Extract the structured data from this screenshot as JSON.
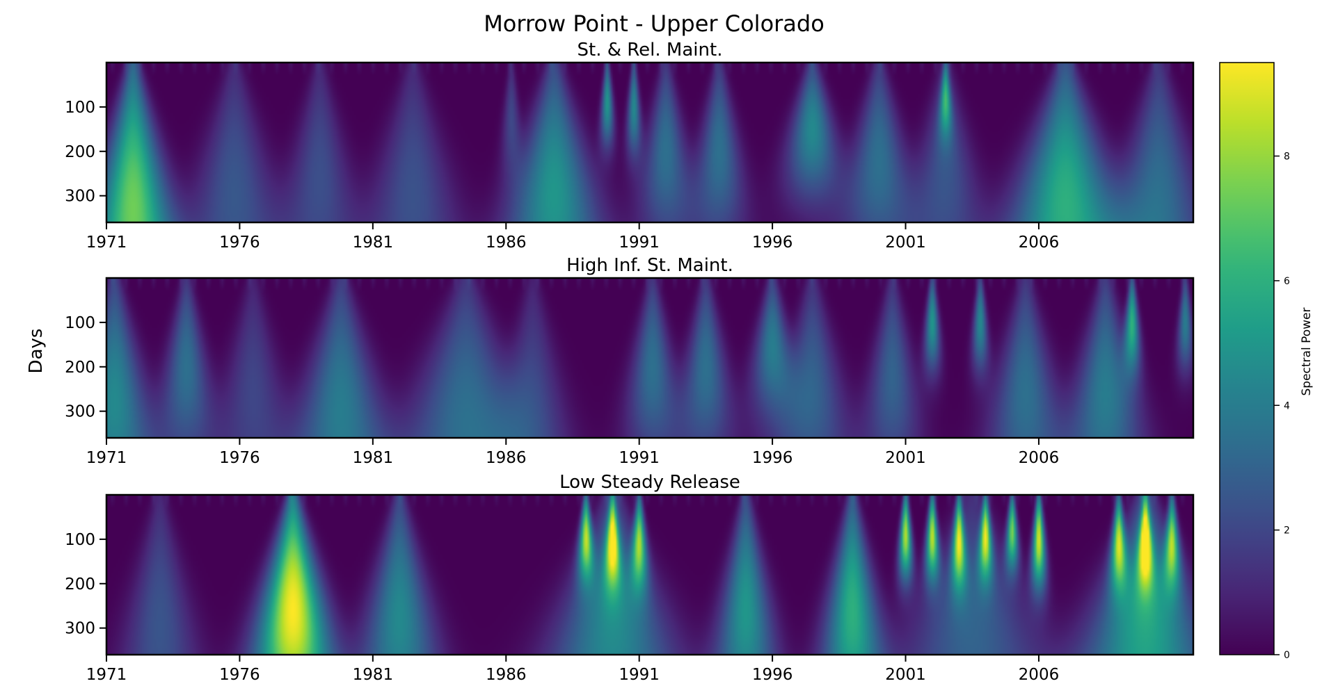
{
  "figure": {
    "title": "Morrow Point - Upper Colorado",
    "ylabel": "Days",
    "colorbar_label": "Spectral Power"
  },
  "colors": {
    "colormap": "viridis",
    "axis_frame": "#000000",
    "background": "#ffffff"
  },
  "chart_data": [
    {
      "type": "heatmap",
      "title": "St. & Rel. Maint.",
      "x_ticks": [
        "1971",
        "1976",
        "1981",
        "1986",
        "1991",
        "1996",
        "2001",
        "2006"
      ],
      "y_ticks": [
        "100",
        "200",
        "300"
      ],
      "xlim": [
        1971,
        2011.8
      ],
      "ylim": [
        360,
        0
      ],
      "vmax": 9.5,
      "features": [
        {
          "year": 1972.0,
          "period": 330,
          "power": 7.4,
          "width": 0.5
        },
        {
          "year": 1975.8,
          "period": 300,
          "power": 2.6,
          "width": 0.6
        },
        {
          "year": 1979.0,
          "period": 260,
          "power": 2.3,
          "width": 0.5
        },
        {
          "year": 1982.5,
          "period": 300,
          "power": 2.4,
          "width": 0.6
        },
        {
          "year": 1986.2,
          "period": 120,
          "power": 2.0,
          "width": 0.22
        },
        {
          "year": 1987.8,
          "period": 300,
          "power": 5.0,
          "width": 0.6
        },
        {
          "year": 1989.8,
          "period": 90,
          "power": 5.0,
          "width": 0.18
        },
        {
          "year": 1990.8,
          "period": 100,
          "power": 4.5,
          "width": 0.18
        },
        {
          "year": 1992.0,
          "period": 200,
          "power": 3.5,
          "width": 0.4
        },
        {
          "year": 1994.0,
          "period": 200,
          "power": 3.5,
          "width": 0.4
        },
        {
          "year": 1997.5,
          "period": 150,
          "power": 4.5,
          "width": 0.5
        },
        {
          "year": 2000.0,
          "period": 220,
          "power": 3.5,
          "width": 0.5
        },
        {
          "year": 2002.5,
          "period": 80,
          "power": 5.0,
          "width": 0.18
        },
        {
          "year": 2002.5,
          "period": 250,
          "power": 2.5,
          "width": 0.5
        },
        {
          "year": 2007.0,
          "period": 320,
          "power": 6.0,
          "width": 0.7
        },
        {
          "year": 2010.5,
          "period": 320,
          "power": 3.5,
          "width": 0.6
        }
      ]
    },
    {
      "type": "heatmap",
      "title": "High Inf. St. Maint.",
      "x_ticks": [
        "1971",
        "1976",
        "1981",
        "1986",
        "1991",
        "1996",
        "2001",
        "2006"
      ],
      "y_ticks": [
        "100",
        "200",
        "300"
      ],
      "xlim": [
        1971,
        2011.8
      ],
      "ylim": [
        360,
        0
      ],
      "vmax": 9.5,
      "features": [
        {
          "year": 1971.3,
          "period": 280,
          "power": 4.5,
          "width": 0.5
        },
        {
          "year": 1974.0,
          "period": 200,
          "power": 3.5,
          "width": 0.4
        },
        {
          "year": 1976.5,
          "period": 260,
          "power": 2.0,
          "width": 0.5
        },
        {
          "year": 1979.8,
          "period": 300,
          "power": 4.0,
          "width": 0.6
        },
        {
          "year": 1984.5,
          "period": 320,
          "power": 3.5,
          "width": 0.8
        },
        {
          "year": 1987.0,
          "period": 260,
          "power": 2.0,
          "width": 0.5
        },
        {
          "year": 1991.5,
          "period": 200,
          "power": 3.5,
          "width": 0.4
        },
        {
          "year": 1993.5,
          "period": 200,
          "power": 3.5,
          "width": 0.4
        },
        {
          "year": 1996.0,
          "period": 150,
          "power": 4.0,
          "width": 0.4
        },
        {
          "year": 1997.5,
          "period": 250,
          "power": 3.0,
          "width": 0.5
        },
        {
          "year": 2000.5,
          "period": 220,
          "power": 3.0,
          "width": 0.4
        },
        {
          "year": 2002.0,
          "period": 100,
          "power": 5.0,
          "width": 0.2
        },
        {
          "year": 2003.8,
          "period": 100,
          "power": 4.5,
          "width": 0.2
        },
        {
          "year": 2005.5,
          "period": 260,
          "power": 3.5,
          "width": 0.5
        },
        {
          "year": 2008.5,
          "period": 260,
          "power": 4.0,
          "width": 0.5
        },
        {
          "year": 2009.5,
          "period": 100,
          "power": 6.0,
          "width": 0.2
        },
        {
          "year": 2011.5,
          "period": 100,
          "power": 4.0,
          "width": 0.2
        }
      ]
    },
    {
      "type": "heatmap",
      "title": "Low Steady Release",
      "x_ticks": [
        "1971",
        "1976",
        "1981",
        "1986",
        "1991",
        "1996",
        "2001",
        "2006"
      ],
      "y_ticks": [
        "100",
        "200",
        "300"
      ],
      "xlim": [
        1971,
        2011.8
      ],
      "ylim": [
        360,
        0
      ],
      "vmax": 9.5,
      "features": [
        {
          "year": 1973.0,
          "period": 300,
          "power": 2.5,
          "width": 0.5
        },
        {
          "year": 1978.0,
          "period": 260,
          "power": 9.5,
          "width": 0.5
        },
        {
          "year": 1982.0,
          "period": 280,
          "power": 4.5,
          "width": 0.5
        },
        {
          "year": 1989.0,
          "period": 90,
          "power": 8.0,
          "width": 0.2
        },
        {
          "year": 1990.0,
          "period": 100,
          "power": 8.0,
          "width": 0.2
        },
        {
          "year": 1991.0,
          "period": 100,
          "power": 7.5,
          "width": 0.2
        },
        {
          "year": 1990.0,
          "period": 320,
          "power": 4.5,
          "width": 0.8
        },
        {
          "year": 1995.0,
          "period": 260,
          "power": 5.0,
          "width": 0.4
        },
        {
          "year": 1999.0,
          "period": 260,
          "power": 6.0,
          "width": 0.4
        },
        {
          "year": 2001.0,
          "period": 90,
          "power": 8.5,
          "width": 0.18
        },
        {
          "year": 2002.0,
          "period": 90,
          "power": 8.5,
          "width": 0.18
        },
        {
          "year": 2003.0,
          "period": 100,
          "power": 8.0,
          "width": 0.18
        },
        {
          "year": 2004.0,
          "period": 90,
          "power": 8.0,
          "width": 0.18
        },
        {
          "year": 2005.0,
          "period": 80,
          "power": 7.5,
          "width": 0.18
        },
        {
          "year": 2006.0,
          "period": 100,
          "power": 9.0,
          "width": 0.18
        },
        {
          "year": 2003.5,
          "period": 320,
          "power": 3.0,
          "width": 0.9
        },
        {
          "year": 2009.0,
          "period": 100,
          "power": 8.0,
          "width": 0.2
        },
        {
          "year": 2010.0,
          "period": 100,
          "power": 8.5,
          "width": 0.2
        },
        {
          "year": 2011.0,
          "period": 100,
          "power": 7.5,
          "width": 0.2
        },
        {
          "year": 2010.0,
          "period": 320,
          "power": 5.5,
          "width": 0.8
        }
      ]
    }
  ],
  "colorbar": {
    "ticks": [
      "0",
      "2",
      "4",
      "6",
      "8"
    ],
    "range": [
      0,
      9.5
    ]
  }
}
